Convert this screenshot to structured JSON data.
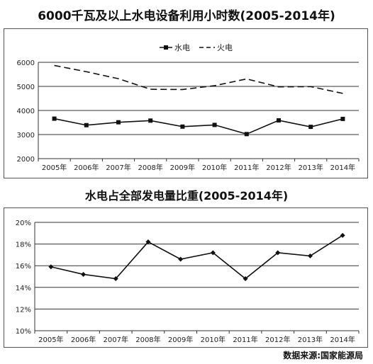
{
  "chart_data": [
    {
      "type": "line",
      "title": "6000千瓦及以上水电设备利用小时数(2005-2014年)",
      "categories": [
        "2005年",
        "2006年",
        "2007年",
        "2008年",
        "2009年",
        "2010年",
        "2011年",
        "2012年",
        "2013年",
        "2014年"
      ],
      "ylim": [
        2000,
        6000
      ],
      "yticks": [
        "2000",
        "3000",
        "4000",
        "5000",
        "6000"
      ],
      "grid": true,
      "legend_position": "top-center",
      "series": [
        {
          "name": "水电",
          "style": "solid-square-markers",
          "values": [
            3660,
            3390,
            3510,
            3580,
            3330,
            3400,
            3020,
            3590,
            3320,
            3650
          ]
        },
        {
          "name": "火电",
          "style": "dashed",
          "values": [
            5870,
            5610,
            5320,
            4880,
            4870,
            5030,
            5310,
            4980,
            4990,
            4710
          ]
        }
      ]
    },
    {
      "type": "line",
      "title": "水电占全部发电量比重(2005-2014年)",
      "categories": [
        "2005年",
        "2006年",
        "2007年",
        "2008年",
        "2009年",
        "2010年",
        "2011年",
        "2012年",
        "2013年",
        "2014年"
      ],
      "ylim": [
        10,
        20
      ],
      "yticks": [
        "10%",
        "12%",
        "14%",
        "16%",
        "18%",
        "20%"
      ],
      "grid": true,
      "series": [
        {
          "values": [
            15.9,
            15.2,
            14.8,
            18.2,
            16.6,
            17.2,
            14.8,
            17.2,
            16.9,
            18.8
          ]
        }
      ]
    }
  ],
  "source_text": "数据来源:国家能源局"
}
